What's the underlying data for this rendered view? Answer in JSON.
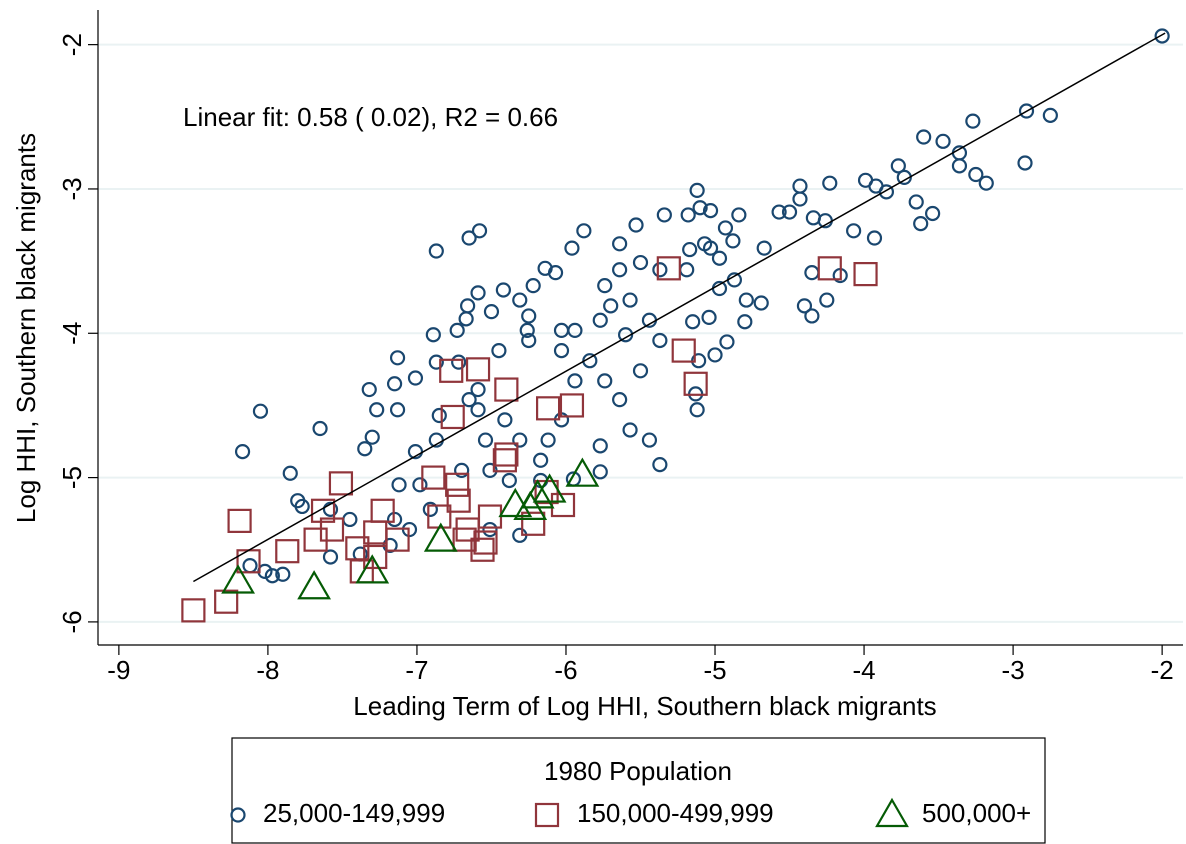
{
  "chart_data": {
    "type": "scatter",
    "annotation": "Linear fit:  0.58 ( 0.02), R2 =  0.66",
    "x_label": "Leading Term of Log HHI, Southern black migrants",
    "y_label": "Log HHI, Southern black migrants",
    "xlim": [
      -9.14,
      -1.86
    ],
    "ylim": [
      -6.16,
      -1.76
    ],
    "xticks": [
      -9,
      -8,
      -7,
      -6,
      -5,
      -4,
      -3,
      -2
    ],
    "yticks": [
      -6,
      -5,
      -4,
      -3,
      -2
    ],
    "grid": true,
    "legend": {
      "title": "1980 Population",
      "position": "bottom"
    },
    "fit_line": {
      "color": "#000000",
      "x": [
        -8.5,
        -1.98
      ],
      "y": [
        -5.72,
        -1.92
      ]
    },
    "series": [
      {
        "name": "25,000-149,999",
        "color": "#1a476f",
        "marker": "circle",
        "x": [
          -2.0,
          -2.91,
          -2.75,
          -2.92,
          -3.6,
          -3.47,
          -3.27,
          -3.36,
          -3.25,
          -3.18,
          -3.36,
          -3.77,
          -3.73,
          -3.85,
          -3.99,
          -3.92,
          -3.65,
          -3.62,
          -3.54,
          -4.23,
          -4.43,
          -4.43,
          -4.57,
          -4.5,
          -4.34,
          -4.26,
          -4.07,
          -3.93,
          -4.35,
          -4.25,
          -4.4,
          -4.35,
          -4.16,
          -4.79,
          -4.69,
          -4.8,
          -5.12,
          -5.03,
          -5.1,
          -5.18,
          -5.34,
          -5.53,
          -4.84,
          -4.93,
          -4.88,
          -5.03,
          -5.07,
          -5.19,
          -4.97,
          -4.87,
          -4.67,
          -4.97,
          -5.04,
          -5.15,
          -4.92,
          -5.0,
          -5.11,
          -5.13,
          -5.12,
          -5.88,
          -5.96,
          -6.14,
          -6.07,
          -6.22,
          -6.31,
          -6.25,
          -6.26,
          -6.25,
          -6.42,
          -6.5,
          -6.59,
          -6.66,
          -6.67,
          -6.73,
          -6.89,
          -6.87,
          -6.65,
          -6.58,
          -6.72,
          -6.87,
          -7.01,
          -7.13,
          -7.15,
          -7.32,
          -7.27,
          -7.13,
          -7.3,
          -7.35,
          -7.65,
          -8.05,
          -8.17,
          -7.85,
          -7.8,
          -7.77,
          -7.97,
          -7.9,
          -8.02,
          -8.12,
          -7.01,
          -6.87,
          -6.85,
          -6.7,
          -6.51,
          -6.54,
          -6.41,
          -6.31,
          -6.17,
          -6.12,
          -6.03,
          -5.94,
          -5.84,
          -5.74,
          -5.64,
          -5.57,
          -5.44,
          -5.37,
          -5.77,
          -5.5,
          -5.37,
          -5.44,
          -5.57,
          -5.7,
          -5.74,
          -5.64,
          -5.5,
          -5.64,
          -5.77,
          -5.94,
          -6.03,
          -6.03,
          -5.6,
          -6.45,
          -6.59,
          -6.65,
          -6.59,
          -7.58,
          -7.45,
          -7.58,
          -7.38,
          -7.15,
          -7.05,
          -7.18,
          -6.98,
          -7.12,
          -6.91,
          -6.51,
          -6.31,
          -6.38,
          -6.17,
          -5.95,
          -5.77,
          -5.37,
          -5.17
        ],
        "values": [
          -1.94,
          -2.46,
          -2.49,
          -2.82,
          -2.64,
          -2.67,
          -2.53,
          -2.75,
          -2.9,
          -2.96,
          -2.84,
          -2.84,
          -2.92,
          -3.02,
          -2.94,
          -2.98,
          -3.09,
          -3.24,
          -3.17,
          -2.96,
          -2.98,
          -3.07,
          -3.16,
          -3.16,
          -3.2,
          -3.22,
          -3.29,
          -3.34,
          -3.58,
          -3.77,
          -3.81,
          -3.88,
          -3.6,
          -3.77,
          -3.79,
          -3.92,
          -3.01,
          -3.15,
          -3.13,
          -3.18,
          -3.18,
          -3.25,
          -3.18,
          -3.27,
          -3.36,
          -3.41,
          -3.38,
          -3.56,
          -3.48,
          -3.63,
          -3.41,
          -3.69,
          -3.89,
          -3.92,
          -4.06,
          -4.15,
          -4.19,
          -4.42,
          -4.53,
          -3.29,
          -3.41,
          -3.55,
          -3.58,
          -3.67,
          -3.77,
          -3.88,
          -3.98,
          -4.05,
          -3.7,
          -3.85,
          -3.72,
          -3.81,
          -3.9,
          -3.98,
          -4.01,
          -3.43,
          -3.34,
          -3.29,
          -4.2,
          -4.2,
          -4.31,
          -4.17,
          -4.35,
          -4.39,
          -4.53,
          -4.53,
          -4.72,
          -4.8,
          -4.66,
          -4.54,
          -4.82,
          -4.97,
          -5.16,
          -5.2,
          -5.68,
          -5.67,
          -5.65,
          -5.61,
          -4.82,
          -4.74,
          -4.57,
          -4.95,
          -4.95,
          -4.74,
          -4.6,
          -4.74,
          -4.88,
          -4.74,
          -4.6,
          -4.33,
          -4.19,
          -4.33,
          -4.46,
          -4.67,
          -4.74,
          -4.91,
          -4.78,
          -4.26,
          -4.05,
          -3.91,
          -3.77,
          -3.81,
          -3.67,
          -3.56,
          -3.51,
          -3.38,
          -3.91,
          -3.98,
          -3.98,
          -4.12,
          -4.01,
          -4.12,
          -4.39,
          -4.46,
          -4.53,
          -5.22,
          -5.29,
          -5.55,
          -5.53,
          -5.29,
          -5.36,
          -5.47,
          -5.05,
          -5.05,
          -5.22,
          -5.36,
          -5.4,
          -5.02,
          -5.02,
          -5.01,
          -4.96,
          -3.56,
          -3.42
        ]
      },
      {
        "name": "150,000-499,999",
        "color": "#90353b",
        "marker": "square",
        "x": [
          -8.5,
          -8.28,
          -8.19,
          -8.13,
          -7.87,
          -7.51,
          -7.63,
          -7.68,
          -7.57,
          -7.4,
          -7.28,
          -7.37,
          -7.23,
          -7.13,
          -7.28,
          -6.89,
          -6.85,
          -6.77,
          -6.59,
          -6.76,
          -6.72,
          -6.66,
          -6.68,
          -6.54,
          -6.56,
          -6.51,
          -6.73,
          -6.41,
          -6.4,
          -6.4,
          -6.12,
          -5.96,
          -6.22,
          -6.13,
          -6.02,
          -5.31,
          -5.21,
          -5.13,
          -4.23,
          -3.99
        ],
        "values": [
          -5.92,
          -5.86,
          -5.3,
          -5.58,
          -5.51,
          -5.04,
          -5.23,
          -5.43,
          -5.36,
          -5.49,
          -5.55,
          -5.65,
          -5.23,
          -5.43,
          -5.38,
          -5.0,
          -5.27,
          -4.26,
          -4.25,
          -4.58,
          -5.16,
          -5.36,
          -5.43,
          -5.45,
          -5.5,
          -5.27,
          -5.05,
          -4.88,
          -4.84,
          -4.39,
          -4.52,
          -4.5,
          -5.32,
          -5.1,
          -5.19,
          -3.55,
          -4.12,
          -4.35,
          -3.55,
          -3.59
        ]
      },
      {
        "name": "500,000+",
        "color": "#055b05",
        "marker": "triangle",
        "x": [
          -8.2,
          -7.69,
          -7.3,
          -6.84,
          -6.34,
          -6.19,
          -6.11,
          -5.89,
          -6.24
        ],
        "values": [
          -5.72,
          -5.76,
          -5.65,
          -5.43,
          -5.19,
          -5.13,
          -5.09,
          -4.98,
          -5.21
        ]
      }
    ]
  }
}
